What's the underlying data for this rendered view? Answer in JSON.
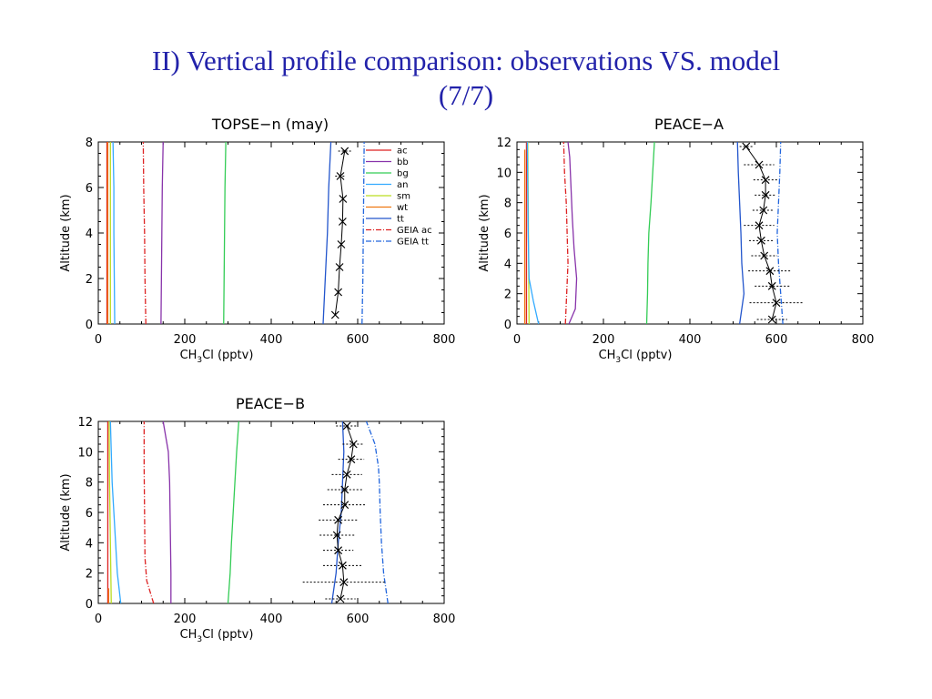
{
  "slide": {
    "title_line1": "II) Vertical profile comparison: observations VS. model",
    "title_line2": "(7/7)"
  },
  "colors": {
    "title": "#2222aa",
    "ac": "#dd2222",
    "bb": "#8833aa",
    "bg": "#33cc55",
    "an": "#33aaff",
    "sm": "#bbdd22",
    "wt": "#ee7711",
    "tt": "#2255cc",
    "geia_ac": "#dd2222",
    "geia_tt": "#2266dd",
    "obs": "#000000"
  },
  "chart_data": [
    {
      "type": "line",
      "title": "TOPSE−n (may)",
      "xlabel_main": "CH",
      "xlabel_sub": "3",
      "xlabel_rest": "Cl (pptv)",
      "ylabel": "Altitude (km)",
      "xlim": [
        0,
        800
      ],
      "ylim": [
        0,
        8
      ],
      "xticks": [
        "0",
        "200",
        "400",
        "600",
        "800"
      ],
      "yticks": [
        "0",
        "2",
        "4",
        "6",
        "8"
      ],
      "legend": {
        "position": "top-right",
        "entries": [
          {
            "label": "ac",
            "key": "ac",
            "dash": ""
          },
          {
            "label": "bb",
            "key": "bb",
            "dash": ""
          },
          {
            "label": "bg",
            "key": "bg",
            "dash": ""
          },
          {
            "label": "an",
            "key": "an",
            "dash": ""
          },
          {
            "label": "sm",
            "key": "sm",
            "dash": ""
          },
          {
            "label": "wt",
            "key": "wt",
            "dash": ""
          },
          {
            "label": "tt",
            "key": "tt",
            "dash": ""
          },
          {
            "label": "GEIA  ac",
            "key": "geia_ac",
            "dash": "6,2,1,2"
          },
          {
            "label": "GEIA  tt",
            "key": "geia_tt",
            "dash": "6,2,1,2"
          }
        ]
      },
      "series": [
        {
          "key": "ac",
          "dash": "",
          "points": [
            [
              20,
              0
            ],
            [
              20,
              2
            ],
            [
              20,
              4
            ],
            [
              20,
              6
            ],
            [
              20,
              8
            ]
          ]
        },
        {
          "key": "wt",
          "dash": "",
          "points": [
            [
              22,
              0
            ],
            [
              22,
              2
            ],
            [
              22,
              4
            ],
            [
              22,
              6
            ],
            [
              22,
              8
            ]
          ]
        },
        {
          "key": "sm",
          "dash": "",
          "points": [
            [
              28,
              0
            ],
            [
              28,
              2
            ],
            [
              28,
              4
            ],
            [
              28,
              6
            ],
            [
              28,
              8
            ]
          ]
        },
        {
          "key": "an",
          "dash": "",
          "points": [
            [
              38,
              0
            ],
            [
              37,
              2
            ],
            [
              36,
              4
            ],
            [
              36,
              6
            ],
            [
              34,
              8
            ]
          ]
        },
        {
          "key": "geia_ac",
          "dash": "6,2,1,2",
          "points": [
            [
              110,
              0
            ],
            [
              108,
              2
            ],
            [
              107,
              4
            ],
            [
              105,
              6
            ],
            [
              104,
              8
            ]
          ]
        },
        {
          "key": "bb",
          "dash": "",
          "points": [
            [
              145,
              0
            ],
            [
              146,
              2
            ],
            [
              147,
              4
            ],
            [
              148,
              6
            ],
            [
              150,
              8
            ]
          ]
        },
        {
          "key": "bg",
          "dash": "",
          "points": [
            [
              290,
              0
            ],
            [
              291,
              2
            ],
            [
              292,
              4
            ],
            [
              293,
              6
            ],
            [
              295,
              8
            ]
          ]
        },
        {
          "key": "tt",
          "dash": "",
          "points": [
            [
              520,
              0
            ],
            [
              525,
              2
            ],
            [
              530,
              4
            ],
            [
              533,
              6
            ],
            [
              538,
              8
            ]
          ]
        },
        {
          "key": "geia_tt",
          "dash": "6,2,1,2",
          "points": [
            [
              610,
              0
            ],
            [
              612,
              2
            ],
            [
              613,
              4
            ],
            [
              614,
              6
            ],
            [
              615,
              8
            ]
          ]
        }
      ],
      "observations": {
        "line": [
          [
            548,
            0.4
          ],
          [
            555,
            1.4
          ],
          [
            558,
            2.5
          ],
          [
            562,
            3.5
          ],
          [
            565,
            4.5
          ],
          [
            566,
            5.5
          ],
          [
            560,
            6.5
          ],
          [
            570,
            7.6
          ]
        ],
        "points": [
          [
            548,
            0.4,
            0
          ],
          [
            555,
            1.4,
            0
          ],
          [
            558,
            2.5,
            0
          ],
          [
            562,
            3.5,
            0
          ],
          [
            565,
            4.5,
            0
          ],
          [
            566,
            5.5,
            0
          ],
          [
            560,
            6.5,
            12
          ],
          [
            570,
            7.6,
            15
          ]
        ]
      }
    },
    {
      "type": "line",
      "title": "PEACE−A",
      "xlabel_main": "CH",
      "xlabel_sub": "3",
      "xlabel_rest": "Cl (pptv)",
      "ylabel": "Altitude (km)",
      "xlim": [
        0,
        800
      ],
      "ylim": [
        0,
        12
      ],
      "xticks": [
        "0",
        "200",
        "400",
        "600",
        "800"
      ],
      "yticks": [
        "0",
        "2",
        "4",
        "6",
        "8",
        "10",
        "12"
      ],
      "series": [
        {
          "key": "ac",
          "dash": "",
          "points": [
            [
              22,
              0
            ],
            [
              22,
              4
            ],
            [
              22,
              8
            ],
            [
              22,
              12
            ]
          ]
        },
        {
          "key": "wt",
          "dash": "",
          "points": [
            [
              18,
              0
            ],
            [
              18,
              11.5
            ]
          ]
        },
        {
          "key": "sm",
          "dash": "",
          "points": [
            [
              28,
              0
            ],
            [
              27,
              4
            ],
            [
              26,
              8
            ],
            [
              25,
              12
            ]
          ]
        },
        {
          "key": "an",
          "dash": "",
          "points": [
            [
              50,
              0
            ],
            [
              38,
              1.5
            ],
            [
              28,
              3
            ],
            [
              26,
              6
            ],
            [
              25,
              9
            ],
            [
              24,
              12
            ]
          ]
        },
        {
          "key": "geia_ac",
          "dash": "6,2,1,2",
          "points": [
            [
              112,
              0
            ],
            [
              115,
              2
            ],
            [
              118,
              4
            ],
            [
              116,
              6
            ],
            [
              114,
              8
            ],
            [
              110,
              10
            ],
            [
              108,
              12
            ]
          ]
        },
        {
          "key": "bb",
          "dash": "",
          "points": [
            [
              120,
              0
            ],
            [
              135,
              1
            ],
            [
              138,
              3
            ],
            [
              132,
              5
            ],
            [
              128,
              7
            ],
            [
              125,
              9
            ],
            [
              122,
              11
            ],
            [
              118,
              12
            ]
          ]
        },
        {
          "key": "bg",
          "dash": "",
          "points": [
            [
              300,
              0
            ],
            [
              302,
              2
            ],
            [
              303,
              4
            ],
            [
              305,
              6
            ],
            [
              310,
              8
            ],
            [
              314,
              10
            ],
            [
              318,
              12
            ]
          ]
        },
        {
          "key": "tt",
          "dash": "",
          "points": [
            [
              515,
              0
            ],
            [
              525,
              2
            ],
            [
              520,
              4
            ],
            [
              518,
              6
            ],
            [
              515,
              8
            ],
            [
              512,
              10
            ],
            [
              510,
              12
            ]
          ]
        },
        {
          "key": "geia_tt",
          "dash": "6,2,1,2",
          "points": [
            [
              615,
              0
            ],
            [
              610,
              2
            ],
            [
              605,
              4
            ],
            [
              602,
              6
            ],
            [
              605,
              8
            ],
            [
              608,
              10
            ],
            [
              610,
              12
            ]
          ]
        }
      ],
      "observations": {
        "line": [
          [
            590,
            0.3
          ],
          [
            600,
            1.4
          ],
          [
            590,
            2.5
          ],
          [
            585,
            3.5
          ],
          [
            572,
            4.5
          ],
          [
            565,
            5.5
          ],
          [
            560,
            6.5
          ],
          [
            570,
            7.5
          ],
          [
            575,
            8.5
          ],
          [
            575,
            9.5
          ],
          [
            560,
            10.5
          ],
          [
            530,
            11.7
          ]
        ],
        "points": [
          [
            590,
            0.3,
            35
          ],
          [
            600,
            1.4,
            62
          ],
          [
            590,
            2.5,
            40
          ],
          [
            585,
            3.5,
            50
          ],
          [
            572,
            4.5,
            30
          ],
          [
            565,
            5.5,
            28
          ],
          [
            560,
            6.5,
            35
          ],
          [
            570,
            7.5,
            25
          ],
          [
            575,
            8.5,
            25
          ],
          [
            575,
            9.5,
            28
          ],
          [
            560,
            10.5,
            35
          ],
          [
            530,
            11.7,
            15
          ]
        ]
      }
    },
    {
      "type": "line",
      "title": "PEACE−B",
      "xlabel_main": "CH",
      "xlabel_sub": "3",
      "xlabel_rest": "Cl (pptv)",
      "ylabel": "Altitude (km)",
      "xlim": [
        0,
        800
      ],
      "ylim": [
        0,
        12
      ],
      "xticks": [
        "0",
        "200",
        "400",
        "600",
        "800"
      ],
      "yticks": [
        "0",
        "2",
        "4",
        "6",
        "8",
        "10",
        "12"
      ],
      "series": [
        {
          "key": "ac",
          "dash": "",
          "points": [
            [
              22,
              0
            ],
            [
              22,
              4
            ],
            [
              22,
              8
            ],
            [
              22,
              12
            ]
          ]
        },
        {
          "key": "wt",
          "dash": "",
          "points": [
            [
              24,
              0
            ],
            [
              24,
              1
            ]
          ]
        },
        {
          "key": "sm",
          "dash": "",
          "points": [
            [
              30,
              0
            ],
            [
              28,
              4
            ],
            [
              26,
              8
            ],
            [
              25,
              12
            ]
          ]
        },
        {
          "key": "an",
          "dash": "",
          "points": [
            [
              52,
              0
            ],
            [
              44,
              2
            ],
            [
              40,
              4
            ],
            [
              36,
              6
            ],
            [
              32,
              8
            ],
            [
              30,
              10
            ],
            [
              28,
              12
            ]
          ]
        },
        {
          "key": "geia_ac",
          "dash": "6,2,1,2",
          "points": [
            [
              128,
              0
            ],
            [
              112,
              1.5
            ],
            [
              108,
              3
            ],
            [
              107,
              6
            ],
            [
              106,
              9
            ],
            [
              106,
              12
            ]
          ]
        },
        {
          "key": "bb",
          "dash": "",
          "points": [
            [
              168,
              0
            ],
            [
              168,
              2
            ],
            [
              167,
              4
            ],
            [
              166,
              6
            ],
            [
              165,
              8
            ],
            [
              162,
              10
            ],
            [
              150,
              12
            ]
          ]
        },
        {
          "key": "bg",
          "dash": "",
          "points": [
            [
              300,
              0
            ],
            [
              305,
              2
            ],
            [
              308,
              4
            ],
            [
              312,
              6
            ],
            [
              316,
              8
            ],
            [
              320,
              10
            ],
            [
              325,
              12
            ]
          ]
        },
        {
          "key": "tt",
          "dash": "",
          "points": [
            [
              540,
              0
            ],
            [
              550,
              2
            ],
            [
              555,
              4
            ],
            [
              562,
              6
            ],
            [
              565,
              8
            ],
            [
              568,
              10
            ],
            [
              565,
              12
            ]
          ]
        },
        {
          "key": "geia_tt",
          "dash": "6,2,1,2",
          "points": [
            [
              670,
              0
            ],
            [
              660,
              2
            ],
            [
              655,
              4
            ],
            [
              652,
              6
            ],
            [
              650,
              8
            ],
            [
              648,
              9
            ],
            [
              640,
              10.5
            ],
            [
              620,
              12
            ]
          ]
        }
      ],
      "observations": {
        "line": [
          [
            560,
            0.3
          ],
          [
            568,
            1.4
          ],
          [
            565,
            2.5
          ],
          [
            555,
            3.5
          ],
          [
            552,
            4.5
          ],
          [
            555,
            5.5
          ],
          [
            570,
            6.5
          ],
          [
            570,
            7.5
          ],
          [
            575,
            8.5
          ],
          [
            585,
            9.5
          ],
          [
            590,
            10.5
          ],
          [
            575,
            11.7
          ]
        ],
        "points": [
          [
            560,
            0.3,
            35
          ],
          [
            568,
            1.4,
            95
          ],
          [
            565,
            2.5,
            45
          ],
          [
            555,
            3.5,
            35
          ],
          [
            552,
            4.5,
            40
          ],
          [
            555,
            5.5,
            45
          ],
          [
            570,
            6.5,
            50
          ],
          [
            570,
            7.5,
            40
          ],
          [
            575,
            8.5,
            35
          ],
          [
            585,
            9.5,
            30
          ],
          [
            590,
            10.5,
            25
          ],
          [
            575,
            11.7,
            25
          ]
        ]
      }
    }
  ]
}
